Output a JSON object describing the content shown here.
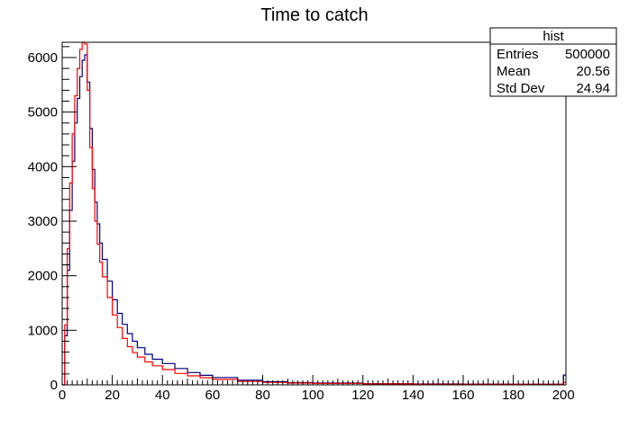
{
  "chart_data": {
    "type": "line",
    "title": "Time to catch",
    "xlabel": "",
    "ylabel": "",
    "xlim": [
      0,
      201
    ],
    "ylim": [
      0,
      6280
    ],
    "x_ticks": [
      0,
      20,
      40,
      60,
      80,
      100,
      120,
      140,
      160,
      180,
      200
    ],
    "y_ticks": [
      0,
      1000,
      2000,
      3000,
      4000,
      5000,
      6000
    ],
    "grid": false,
    "stats_box": {
      "name": "hist",
      "position": "top-right",
      "rows": [
        {
          "label": "Entries",
          "value": "500000"
        },
        {
          "label": "Mean",
          "value": "20.56"
        },
        {
          "label": "Std Dev",
          "value": "24.94"
        }
      ]
    },
    "series": [
      {
        "color": "#000080",
        "x": [
          0,
          1,
          2,
          3,
          4,
          5,
          6,
          7,
          8,
          9,
          10,
          11,
          12,
          13,
          14,
          15,
          16,
          18,
          20,
          22,
          24,
          26,
          28,
          30,
          33,
          36,
          40,
          45,
          50,
          55,
          60,
          70,
          80,
          90,
          100,
          120,
          140,
          160,
          180,
          199,
          200,
          201
        ],
        "y": [
          0,
          900,
          2100,
          3200,
          4100,
          4800,
          5250,
          5650,
          5950,
          6050,
          5550,
          4700,
          3950,
          3350,
          2950,
          2600,
          2300,
          1900,
          1560,
          1310,
          1110,
          940,
          800,
          680,
          560,
          470,
          390,
          300,
          225,
          175,
          135,
          85,
          58,
          42,
          33,
          22,
          17,
          14,
          12,
          12,
          180,
          180
        ]
      },
      {
        "color": "#ff0000",
        "x": [
          0,
          1,
          2,
          3,
          4,
          5,
          6,
          7,
          8,
          9,
          10,
          11,
          12,
          13,
          14,
          15,
          16,
          18,
          20,
          22,
          24,
          26,
          28,
          30,
          33,
          36,
          40,
          45,
          50,
          55,
          60,
          70,
          80,
          90,
          100,
          120,
          140,
          160,
          180,
          199,
          200,
          201
        ],
        "y": [
          0,
          1100,
          2500,
          3700,
          4600,
          5300,
          5800,
          6150,
          6300,
          6250,
          5400,
          4350,
          3600,
          3000,
          2580,
          2250,
          1980,
          1600,
          1280,
          1050,
          850,
          700,
          590,
          510,
          420,
          350,
          280,
          210,
          165,
          130,
          100,
          65,
          45,
          33,
          26,
          18,
          14,
          12,
          10,
          10,
          45,
          45
        ]
      }
    ]
  }
}
